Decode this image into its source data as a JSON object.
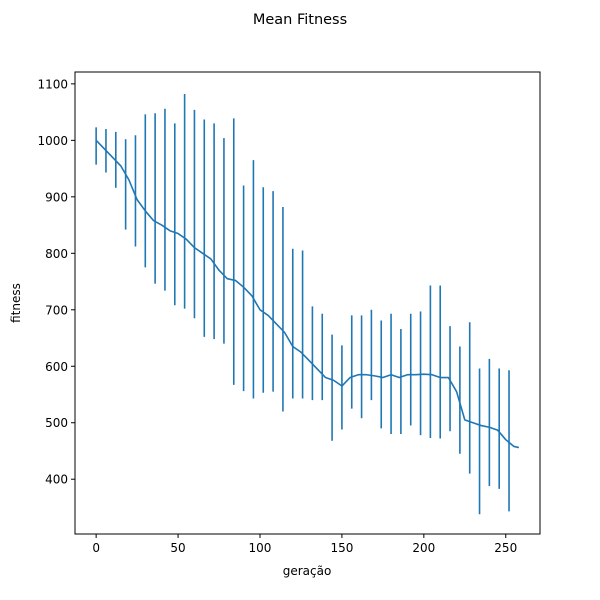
{
  "chart_data": {
    "type": "line",
    "title": "Mean Fitness",
    "xlabel": "geração",
    "ylabel": "fitness",
    "xlim": [
      -12.9,
      270.9
    ],
    "ylim": [
      303,
      1121
    ],
    "xticks": [
      0,
      50,
      100,
      150,
      200,
      250
    ],
    "yticks": [
      400,
      500,
      600,
      700,
      800,
      900,
      1000,
      1100
    ],
    "grid": false,
    "legend": "none",
    "line_color": "#1f77b4",
    "series": [
      {
        "x": [
          0,
          5,
          10,
          15,
          20,
          25,
          30,
          35,
          40,
          45,
          50,
          55,
          60,
          65,
          70,
          75,
          80,
          85,
          90,
          95,
          100,
          105,
          110,
          115,
          120,
          125,
          130,
          135,
          140,
          145,
          150,
          155,
          160,
          165,
          170,
          175,
          180,
          185,
          190,
          195,
          200,
          205,
          210,
          215,
          220,
          225,
          230,
          235,
          240,
          245,
          250,
          255,
          258
        ],
        "y": [
          1000,
          985,
          970,
          955,
          930,
          895,
          875,
          858,
          850,
          840,
          835,
          825,
          810,
          800,
          790,
          770,
          755,
          752,
          740,
          725,
          700,
          690,
          675,
          660,
          635,
          625,
          610,
          595,
          580,
          575,
          565,
          580,
          585,
          585,
          583,
          580,
          585,
          580,
          585,
          585,
          586,
          585,
          580,
          580,
          555,
          505,
          500,
          495,
          492,
          487,
          470,
          458,
          456
        ]
      }
    ],
    "errorbars": {
      "x": [
        0,
        6,
        12,
        18,
        24,
        30,
        36,
        42,
        48,
        54,
        60,
        66,
        72,
        78,
        84,
        90,
        96,
        102,
        108,
        114,
        120,
        126,
        132,
        138,
        144,
        150,
        156,
        162,
        168,
        174,
        180,
        186,
        192,
        198,
        204,
        210,
        216,
        222,
        228,
        234,
        240,
        246,
        252
      ],
      "lower": [
        957,
        943,
        916,
        842,
        812,
        775,
        746,
        734,
        708,
        702,
        685,
        652,
        648,
        640,
        567,
        556,
        543,
        553,
        555,
        520,
        543,
        543,
        540,
        540,
        468,
        488,
        525,
        508,
        540,
        490,
        480,
        480,
        495,
        478,
        473,
        472,
        485,
        445,
        410,
        338,
        388,
        383,
        343
      ],
      "upper": [
        1023,
        1020,
        1015,
        1002,
        1009,
        1046,
        1048,
        1056,
        1030,
        1082,
        1054,
        1037,
        1030,
        1004,
        1039,
        920,
        965,
        917,
        910,
        882,
        808,
        805,
        706,
        693,
        656,
        637,
        690,
        690,
        700,
        681,
        693,
        666,
        693,
        697,
        743,
        743,
        671,
        635,
        678,
        596,
        613,
        596,
        593
      ]
    }
  }
}
